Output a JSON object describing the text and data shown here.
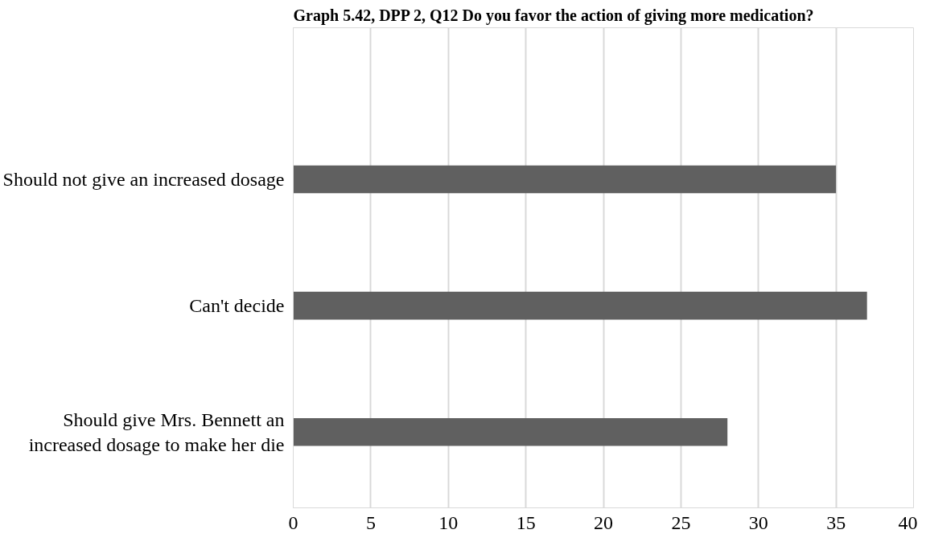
{
  "chart_data": {
    "type": "bar",
    "orientation": "horizontal",
    "title": "Graph 5.42, DPP 2, Q12 Do you favor the action of giving more medication?",
    "categories": [
      "Should not give an increased dosage",
      "Can't decide",
      "Should give Mrs. Bennett an increased dosage to make her die"
    ],
    "values": [
      35,
      37,
      28
    ],
    "color": "#606060",
    "xlim": [
      0,
      40
    ],
    "xticks": [
      0,
      5,
      10,
      15,
      20,
      25,
      30,
      35,
      40
    ],
    "grid": "x"
  }
}
